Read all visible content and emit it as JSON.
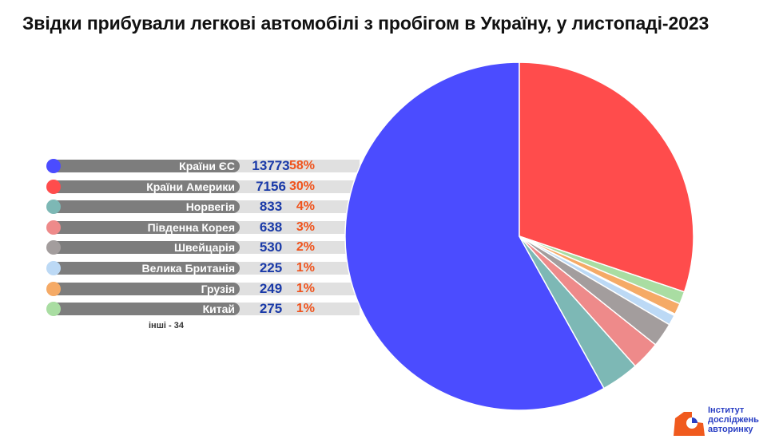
{
  "title": "Звідки прибували легкові автомобілі з пробігом в Україну, у листопаді-2023",
  "chart_data": {
    "type": "pie",
    "title": "Звідки прибували легкові автомобілі з пробігом в Україну, у листопаді-2023",
    "items": [
      {
        "label": "Країни ЄС",
        "value": 13773,
        "pct": "58%",
        "color": "#4b4cff"
      },
      {
        "label": "Країни Америки",
        "value": 7156,
        "pct": "30%",
        "color": "#ff4c4c"
      },
      {
        "label": "Норвегія",
        "value": 833,
        "pct": "4%",
        "color": "#7db8b5"
      },
      {
        "label": "Південна Корея",
        "value": 638,
        "pct": "3%",
        "color": "#ee8a8a"
      },
      {
        "label": "Швейцарія",
        "value": 530,
        "pct": "2%",
        "color": "#a39d9d"
      },
      {
        "label": "Велика Британія",
        "value": 225,
        "pct": "1%",
        "color": "#bcd9f5"
      },
      {
        "label": "Грузія",
        "value": 249,
        "pct": "1%",
        "color": "#f5aa66"
      },
      {
        "label": "Китай",
        "value": 275,
        "pct": "1%",
        "color": "#a9dda2"
      }
    ],
    "others": {
      "label": "інші - 34",
      "value": 34,
      "color": "#ffffff"
    }
  },
  "logo": {
    "line1": "Інститут",
    "line2": "досліджень",
    "line3": "авторинку",
    "color_orange": "#f05a1e",
    "color_blue": "#2a3fc4"
  }
}
